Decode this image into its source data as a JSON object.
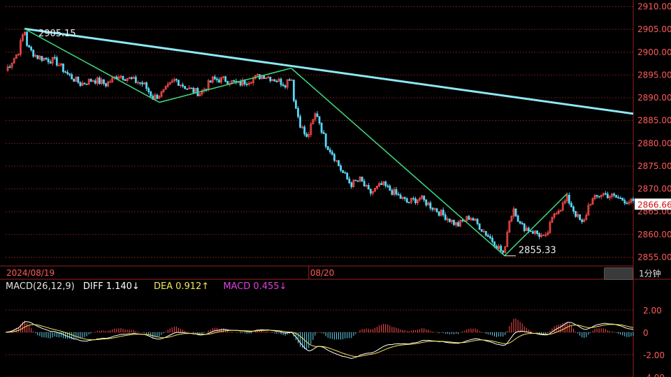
{
  "chart_data": [
    {
      "type": "line",
      "title": "",
      "ylim": [
        2854,
        2911
      ],
      "y_ticks": [
        "2910.00",
        "2905.00",
        "2900.00",
        "2895.00",
        "2890.00",
        "2885.00",
        "2880.00",
        "2875.00",
        "2870.00",
        "2865.00",
        "2860.00",
        "2855.00"
      ],
      "x_labels": [
        "2024/08/19",
        "08/20"
      ],
      "current_price": "2866.66",
      "high_label": "2905.15",
      "low_label": "2855.33",
      "wave_points": [
        {
          "x": 0.03,
          "y": 2905.15
        },
        {
          "x": 0.245,
          "y": 2889.0
        },
        {
          "x": 0.455,
          "y": 2896.5
        },
        {
          "x": 0.795,
          "y": 2855.33
        },
        {
          "x": 0.895,
          "y": 2869.0
        }
      ],
      "trend_line": [
        {
          "x": 0.03,
          "y": 2905.15
        },
        {
          "x": 1.0,
          "y": 2886.5
        }
      ],
      "price_series_desc": "1-minute candlestick price",
      "price_anchors": [
        [
          0.0,
          2896
        ],
        [
          0.02,
          2900
        ],
        [
          0.03,
          2905.1
        ],
        [
          0.035,
          2901
        ],
        [
          0.05,
          2899
        ],
        [
          0.08,
          2898
        ],
        [
          0.1,
          2895
        ],
        [
          0.12,
          2893
        ],
        [
          0.14,
          2894
        ],
        [
          0.16,
          2893
        ],
        [
          0.18,
          2895
        ],
        [
          0.2,
          2894
        ],
        [
          0.22,
          2893
        ],
        [
          0.235,
          2890
        ],
        [
          0.25,
          2891
        ],
        [
          0.27,
          2894
        ],
        [
          0.29,
          2892
        ],
        [
          0.31,
          2891
        ],
        [
          0.33,
          2894
        ],
        [
          0.35,
          2894
        ],
        [
          0.37,
          2893
        ],
        [
          0.39,
          2894
        ],
        [
          0.41,
          2895
        ],
        [
          0.43,
          2894
        ],
        [
          0.445,
          2893
        ],
        [
          0.455,
          2895
        ],
        [
          0.46,
          2889
        ],
        [
          0.47,
          2884
        ],
        [
          0.48,
          2881
        ],
        [
          0.49,
          2885
        ],
        [
          0.495,
          2887
        ],
        [
          0.51,
          2880
        ],
        [
          0.52,
          2878
        ],
        [
          0.535,
          2874
        ],
        [
          0.55,
          2871
        ],
        [
          0.565,
          2872
        ],
        [
          0.58,
          2869
        ],
        [
          0.6,
          2871
        ],
        [
          0.62,
          2869
        ],
        [
          0.64,
          2867
        ],
        [
          0.66,
          2868
        ],
        [
          0.68,
          2866
        ],
        [
          0.7,
          2864
        ],
        [
          0.72,
          2862
        ],
        [
          0.74,
          2864
        ],
        [
          0.76,
          2861
        ],
        [
          0.78,
          2858
        ],
        [
          0.795,
          2855.5
        ],
        [
          0.8,
          2862
        ],
        [
          0.81,
          2866
        ],
        [
          0.82,
          2862
        ],
        [
          0.835,
          2861
        ],
        [
          0.85,
          2860
        ],
        [
          0.86,
          2859
        ],
        [
          0.875,
          2865
        ],
        [
          0.885,
          2866
        ],
        [
          0.895,
          2868
        ],
        [
          0.91,
          2864
        ],
        [
          0.92,
          2862
        ],
        [
          0.93,
          2867
        ],
        [
          0.94,
          2868
        ],
        [
          0.95,
          2869
        ],
        [
          1.0,
          2867
        ]
      ]
    },
    {
      "type": "line",
      "title": "MACD(26,12,9)",
      "ylim": [
        -4.0,
        3.5
      ],
      "y_ticks": [
        "2.00",
        "0",
        "-2.00",
        "-4.00"
      ],
      "legend": [
        {
          "name": "DIFF",
          "value": "1.140",
          "arrow": "↓",
          "color": "#ffffff"
        },
        {
          "name": "DEA",
          "value": "0.912",
          "arrow": "↑",
          "color": "#f2e85a"
        },
        {
          "name": "MACD",
          "value": "0.455",
          "arrow": "↓",
          "color": "#e040e0"
        }
      ]
    }
  ],
  "colors": {
    "background": "#000000",
    "grid": "#6e1a1a",
    "frame": "#9a2020",
    "up": "#ff4a4a",
    "down": "#5ad7f5",
    "wave": "#3ad27a",
    "trend": "#8ee8f5",
    "axis_text": "#ff5a5a",
    "price_tag": "#ffffff"
  },
  "period_label": "1分钟"
}
